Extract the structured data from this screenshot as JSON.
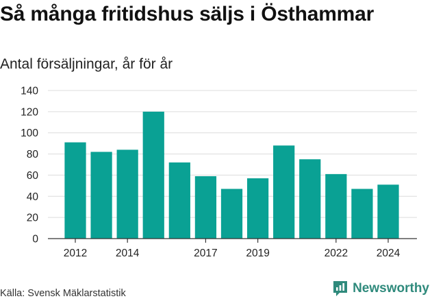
{
  "chart_data": {
    "type": "bar",
    "title": "Så många fritidshus säljs i Östhammar",
    "subtitle": "Antal försäljningar, år för år",
    "x": [
      2012,
      2013,
      2014,
      2015,
      2016,
      2017,
      2018,
      2019,
      2020,
      2021,
      2022,
      2023,
      2024
    ],
    "values": [
      91,
      82,
      84,
      120,
      72,
      59,
      47,
      57,
      88,
      75,
      61,
      47,
      51
    ],
    "x_tick_labels": [
      "2012",
      "2014",
      "2017",
      "2019",
      "2022",
      "2024"
    ],
    "y_ticks": [
      0,
      20,
      40,
      60,
      80,
      100,
      120,
      140
    ],
    "ylim": [
      0,
      140
    ],
    "grid": true,
    "bar_color": "#0aa194",
    "source": "Källa: Svensk Mäklarstatistik"
  },
  "brand": {
    "name": "Newsworthy",
    "logo_icon": "newsworthy-logo-icon",
    "color": "#2f8a7c"
  }
}
